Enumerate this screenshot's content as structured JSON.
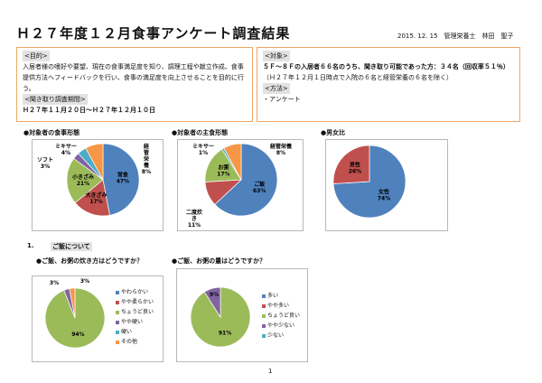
{
  "title": "Ｈ２７年度１２月食事アンケート調査結果",
  "date_author": "2015. 12. 15　管理栄養士　林田　聖子",
  "left_box": {
    "purpose_tag": "<目的>",
    "purpose_text": "入居者様の嗜好や要望、現在の食事満足度を知り、調理工程や献立作成、食事提供方法へフィードバックを行い、食事の満足度を向上させることを目的に行う。",
    "period_tag": "<聞き取り調査期間>",
    "period_text": "Ｈ２７年１１月２０日～Ｈ２７年１２月１０日"
  },
  "right_box": {
    "target_tag": "<対象>",
    "target_text1": "５Ｆ～８Ｆの入居者６６名のうち、聞き取り可能であった方：３４名（回収率５１％）",
    "target_text2": "（Ｈ２７年１２月１日時点で入院の６名と経管栄養の６名を除く）",
    "method_tag": "<方法>",
    "method_text": "・アンケート"
  },
  "section1": {
    "number": "1.",
    "title": "ご飯について"
  },
  "page_number": "1",
  "colors": {
    "blue": "#4f81bd",
    "red": "#c0504d",
    "green": "#9bbb59",
    "purple": "#8064a2",
    "teal": "#4bacc6",
    "orange": "#f79646",
    "box_border": "#f0a766"
  },
  "chart_data": [
    {
      "type": "pie",
      "title": "●対象者の食事形態",
      "categories": [
        "常食",
        "大きざみ",
        "小きざみ",
        "ソフト",
        "ミキサー",
        "経管栄養"
      ],
      "values": [
        47,
        17,
        21,
        3,
        4,
        8
      ],
      "labels": [
        "常食 47%",
        "大きざみ 17%",
        "小きざみ 21%",
        "ソフト 3%",
        "ミキサー 4%",
        "経管栄養 8%"
      ],
      "colors": [
        "#4f81bd",
        "#c0504d",
        "#9bbb59",
        "#8064a2",
        "#4bacc6",
        "#f79646"
      ],
      "legend": "none"
    },
    {
      "type": "pie",
      "title": "●対象者の主食形態",
      "categories": [
        "ご飯",
        "二度炊き",
        "お粥",
        "ミキサー",
        "経管栄養"
      ],
      "values": [
        63,
        11,
        17,
        1,
        8
      ],
      "labels": [
        "ご飯 63%",
        "二度炊き 11%",
        "お粥 17%",
        "ミキサー 1%",
        "経管栄養 8%"
      ],
      "colors": [
        "#4f81bd",
        "#c0504d",
        "#9bbb59",
        "#4bacc6",
        "#f79646"
      ],
      "legend": "none"
    },
    {
      "type": "pie",
      "title": "●男女比",
      "categories": [
        "女性",
        "男性"
      ],
      "values": [
        74,
        26
      ],
      "labels": [
        "女性 74%",
        "男性 26%"
      ],
      "colors": [
        "#4f81bd",
        "#c0504d"
      ],
      "legend": "none"
    },
    {
      "type": "pie",
      "title": "●ご飯、お粥の炊き方はどうですか？",
      "categories": [
        "やわらかい",
        "やや柔らかい",
        "ちょうど良い",
        "やや硬い",
        "硬い",
        "その他"
      ],
      "values": [
        0,
        0,
        94,
        3,
        0,
        3
      ],
      "labels": [
        "",
        "",
        "94%",
        "3%",
        "",
        "3%"
      ],
      "colors": [
        "#4f81bd",
        "#c0504d",
        "#9bbb59",
        "#8064a2",
        "#4bacc6",
        "#f79646"
      ],
      "legend": "right"
    },
    {
      "type": "pie",
      "title": "●ご飯、お粥の量はどうですか？",
      "categories": [
        "多い",
        "やや多い",
        "ちょうど良い",
        "やや少ない",
        "少ない"
      ],
      "values": [
        0,
        0,
        91,
        9,
        0
      ],
      "labels": [
        "",
        "",
        "91%",
        "9%",
        ""
      ],
      "colors": [
        "#4f81bd",
        "#c0504d",
        "#9bbb59",
        "#8064a2",
        "#4bacc6"
      ],
      "legend": "right"
    }
  ]
}
